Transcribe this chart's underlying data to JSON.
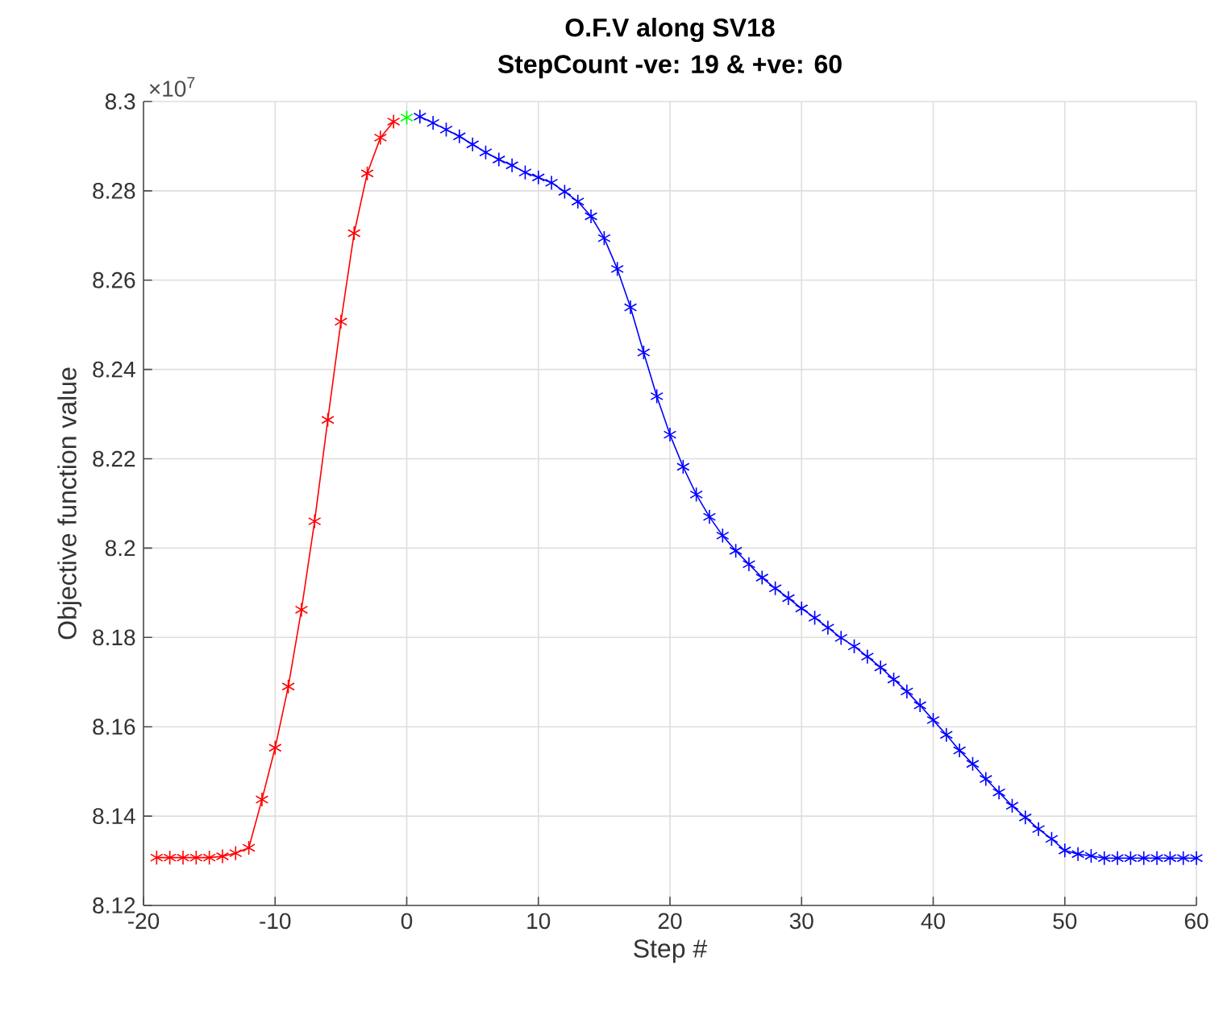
{
  "chart_data": {
    "type": "line",
    "title": "O.F.V along SV18",
    "subtitle": "StepCount -ve: 19 & +ve: 60",
    "xlabel": "Step #",
    "ylabel": "Objective function value",
    "annotations": [
      "×10$^{7}$"
    ],
    "series": [
      {
        "x": [
          -19,
          -18,
          -17,
          -16,
          -15,
          -14,
          -13,
          -12,
          -11,
          -10,
          -9,
          -8,
          -7,
          -6,
          -5,
          -4,
          -3,
          -2,
          -1
        ],
        "color": "#ff0000",
        "values": [
          8.1307,
          8.1307,
          8.1307,
          8.1307,
          8.1307,
          8.131,
          8.1317,
          8.1329,
          8.1437,
          8.1553,
          8.169,
          8.1862,
          8.206,
          8.2287,
          8.2507,
          8.2705,
          8.2839,
          8.2919,
          8.2955
        ]
      },
      {
        "x": [
          0
        ],
        "color": "#00ff00",
        "values": [
          8.2964
        ]
      },
      {
        "x": [
          1,
          2,
          3,
          4,
          5,
          6,
          7,
          8,
          9,
          10,
          11,
          12,
          13,
          14,
          15,
          16,
          17,
          18,
          19,
          20,
          21,
          22,
          23,
          24,
          25,
          26,
          27,
          28,
          29,
          30,
          31,
          32,
          33,
          34,
          35,
          36,
          37,
          38,
          39,
          40,
          41,
          42,
          43,
          44,
          45,
          46,
          47,
          48,
          49,
          50,
          51,
          52,
          53,
          54,
          55,
          56,
          57,
          58,
          59,
          60
        ],
        "color": "#0000ff",
        "values": [
          8.2966,
          8.2952,
          8.2937,
          8.2922,
          8.2904,
          8.2886,
          8.287,
          8.2857,
          8.2841,
          8.283,
          8.2818,
          8.2798,
          8.2776,
          8.2743,
          8.2694,
          8.2625,
          8.2539,
          8.2438,
          8.234,
          8.2254,
          8.2182,
          8.212,
          8.207,
          8.2028,
          8.1994,
          8.1964,
          8.1934,
          8.191,
          8.1888,
          8.1865,
          8.1844,
          8.1822,
          8.1799,
          8.178,
          8.1757,
          8.1733,
          8.1706,
          8.1679,
          8.1648,
          8.1615,
          8.1582,
          8.1547,
          8.1517,
          8.1483,
          8.1453,
          8.1423,
          8.1397,
          8.1371,
          8.1349,
          8.1323,
          8.1315,
          8.1311,
          8.1306,
          8.1306,
          8.1306,
          8.1306,
          8.1306,
          8.1306,
          8.1306,
          8.1306
        ]
      }
    ],
    "xlim": [
      -20,
      60
    ],
    "xticks": [
      -20,
      -10,
      0,
      10,
      20,
      30,
      40,
      50,
      60
    ],
    "ylim": [
      8.12,
      8.3
    ],
    "yticks": [
      8.12,
      8.14,
      8.16,
      8.18,
      8.2,
      8.22,
      8.24,
      8.26,
      8.28,
      8.3
    ],
    "grid": true,
    "marker": "cross",
    "line_style": "solid"
  }
}
